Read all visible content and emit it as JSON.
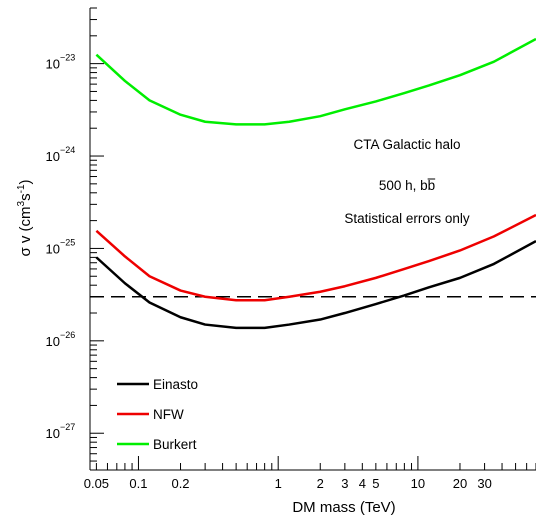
{
  "chart_data": {
    "type": "line",
    "xscale": "log",
    "yscale": "log",
    "xlim": [
      0.045,
      70
    ],
    "ylim": [
      4e-28,
      4e-23
    ],
    "xlabel": "DM mass (TeV)",
    "ylabel": "σ v (cm",
    "ylabel_sup1": "3",
    "ylabel_mid": "s",
    "ylabel_sup2": "-1",
    "ylabel_end": ")",
    "x_tick_labels": [
      {
        "value": 0.05,
        "label": "0.05"
      },
      {
        "value": 0.1,
        "label": "0.1"
      },
      {
        "value": 0.2,
        "label": "0.2"
      },
      {
        "value": 1,
        "label": "1"
      },
      {
        "value": 2,
        "label": "2"
      },
      {
        "value": 3,
        "label": "3"
      },
      {
        "value": 4,
        "label": "4"
      },
      {
        "value": 5,
        "label": "5"
      },
      {
        "value": 10,
        "label": "10"
      },
      {
        "value": 20,
        "label": "20"
      },
      {
        "value": 30,
        "label": "30"
      }
    ],
    "y_tick_labels": [
      {
        "value": 1e-27,
        "base": "10",
        "exp": "−27"
      },
      {
        "value": 1e-26,
        "base": "10",
        "exp": "−26"
      },
      {
        "value": 1e-25,
        "base": "10",
        "exp": "−25"
      },
      {
        "value": 1e-24,
        "base": "10",
        "exp": "−24"
      },
      {
        "value": 1e-23,
        "base": "10",
        "exp": "−23"
      }
    ],
    "annotations": {
      "line1": "CTA Galactic halo",
      "line2": "500 h, b",
      "line2_bar": "b",
      "line3": "Statistical errors only"
    },
    "reference_line": {
      "value": 3e-26,
      "style": "dashed",
      "color": "#000000"
    },
    "legend": {
      "position": "bottom-left"
    },
    "series": [
      {
        "name": "Einasto",
        "color": "#000000",
        "x": [
          0.05,
          0.08,
          0.12,
          0.2,
          0.3,
          0.5,
          0.8,
          1.2,
          2,
          3,
          5,
          8,
          12,
          20,
          35,
          70
        ],
        "y": [
          8e-26,
          4.2e-26,
          2.6e-26,
          1.8e-26,
          1.5e-26,
          1.38e-26,
          1.38e-26,
          1.5e-26,
          1.7e-26,
          2e-26,
          2.5e-26,
          3.1e-26,
          3.8e-26,
          4.8e-26,
          6.8e-26,
          1.2e-25
        ]
      },
      {
        "name": "NFW",
        "color": "#ee0000",
        "x": [
          0.05,
          0.08,
          0.12,
          0.2,
          0.3,
          0.5,
          0.8,
          1.2,
          2,
          3,
          5,
          8,
          12,
          20,
          35,
          70
        ],
        "y": [
          1.55e-25,
          8.2e-26,
          5e-26,
          3.5e-26,
          3e-26,
          2.75e-26,
          2.75e-26,
          3e-26,
          3.4e-26,
          3.9e-26,
          4.8e-26,
          6e-26,
          7.3e-26,
          9.5e-26,
          1.35e-25,
          2.3e-25
        ]
      },
      {
        "name": "Burkert",
        "color": "#00ee00",
        "x": [
          0.05,
          0.08,
          0.12,
          0.2,
          0.3,
          0.5,
          0.8,
          1.2,
          2,
          3,
          5,
          8,
          12,
          20,
          35,
          70
        ],
        "y": [
          1.25e-23,
          6.5e-24,
          4e-24,
          2.8e-24,
          2.35e-24,
          2.2e-24,
          2.2e-24,
          2.35e-24,
          2.7e-24,
          3.2e-24,
          3.9e-24,
          4.8e-24,
          5.8e-24,
          7.5e-24,
          1.05e-23,
          1.85e-23
        ]
      }
    ]
  }
}
